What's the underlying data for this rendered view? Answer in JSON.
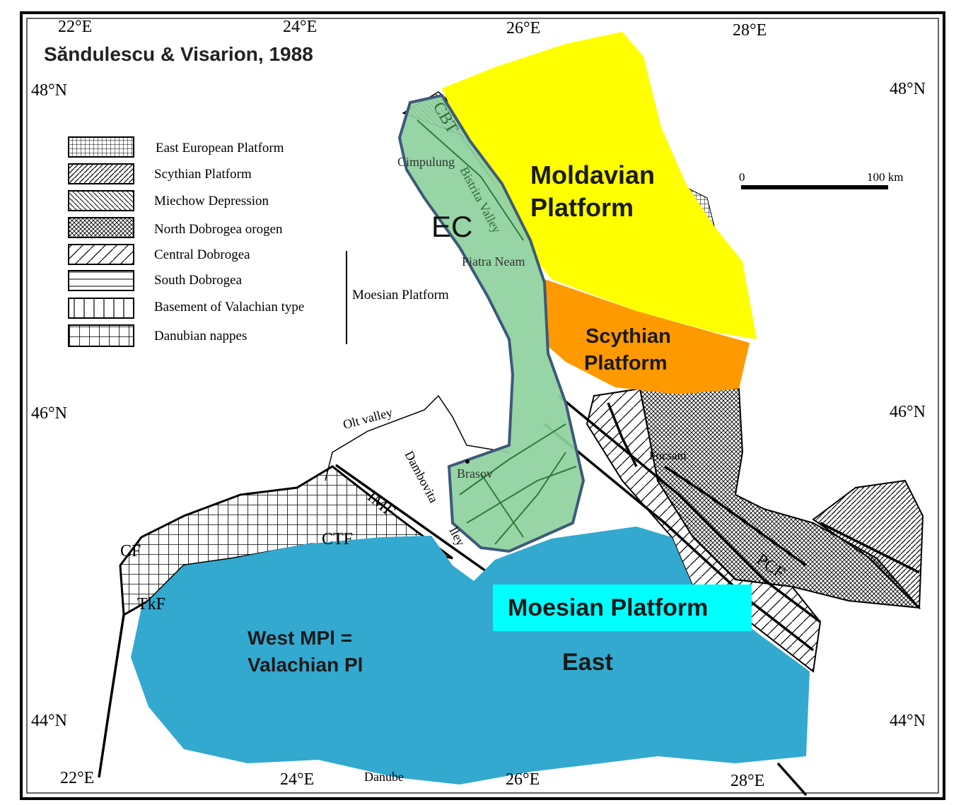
{
  "citation": "Săndulescu & Visarion, 1988",
  "graticule": {
    "top": [
      "22°E",
      "24°E",
      "26°E",
      "28°E"
    ],
    "bottom": [
      "22°E",
      "24°E",
      "26°E",
      "28°E"
    ],
    "left": [
      "48°N",
      "46°N",
      "44°N"
    ],
    "right": [
      "48°N",
      "46°N",
      "44°N"
    ]
  },
  "scale_bar": {
    "start": "0",
    "end": "100 km"
  },
  "legend": {
    "items": [
      {
        "label": "East European Platform",
        "pattern": "fine-grid"
      },
      {
        "label": "Scythian Platform",
        "pattern": "diagonal-dense"
      },
      {
        "label": "Miechow Depression",
        "pattern": "diagonal-back"
      },
      {
        "label": "North Dobrogea orogen",
        "pattern": "crosshatch-dots"
      },
      {
        "label": "Central Dobrogea",
        "pattern": "diagonal-sparse"
      },
      {
        "label": "South Dobrogea",
        "pattern": "horizontal"
      },
      {
        "label": "Basement of Valachian type",
        "pattern": "vertical"
      },
      {
        "label": "Danubian nappes",
        "pattern": "grid"
      }
    ],
    "group_label": "Moesian Platform"
  },
  "regions": {
    "moldavian": {
      "label_1": "Moldavian",
      "label_2": "Platform",
      "color": "#ffff00"
    },
    "scythian": {
      "label_1": "Scythian",
      "label_2": "Platform",
      "color": "#ff9900"
    },
    "ec": {
      "label": "EC",
      "color": "#8fd19e"
    },
    "moesian": {
      "label": "Moesian  Platform",
      "box_color": "#00ffff",
      "color": "#33a9cf"
    },
    "west": {
      "label_1": "West MPl =",
      "label_2": "Valachian Pl"
    },
    "east": {
      "label": "East"
    }
  },
  "place_labels": {
    "campulung": "Cimpulung",
    "bistrita": "Bistrita Valley",
    "piatra": "Piatra Neam",
    "olt": "Olt valley",
    "dambovita": "Dambovita",
    "valley": "lley",
    "brasov": "Brasov",
    "focsani": "Focsani",
    "danube": "Danube"
  },
  "fault_labels": {
    "cbt": "CBT",
    "imf": "IMF",
    "ctf": "CTF",
    "cf": "CF",
    "tkf": "TkF",
    "pcf": "PCF"
  }
}
